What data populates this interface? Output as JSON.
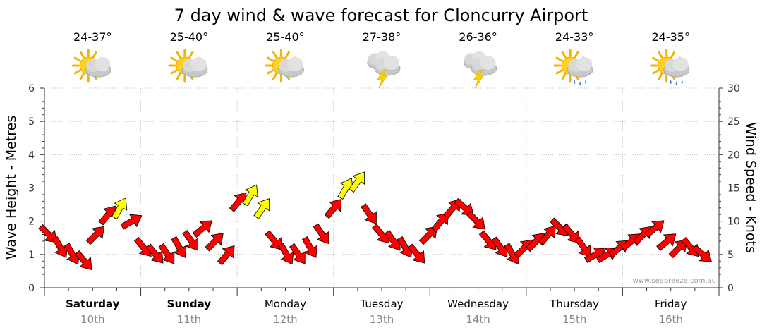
{
  "title": "7 day wind & wave forecast for Cloncurry Airport",
  "credit": "www.seabreeze.com.au",
  "chart_data": {
    "type": "line",
    "title": "7 day wind & wave forecast for Cloncurry Airport",
    "ylabel_left": "Wave Height - Metres",
    "ylabel_right": "Wind Speed - Knots",
    "ylim_left": [
      0,
      6
    ],
    "ylim_right": [
      0,
      30
    ],
    "yticks_left": [
      "0",
      "1",
      "2",
      "3",
      "4",
      "5",
      "6"
    ],
    "yticks_right": [
      "0",
      "5",
      "10",
      "15",
      "20",
      "25",
      "30"
    ],
    "grid": true,
    "days": [
      {
        "day": "Saturday",
        "date": "10th",
        "temp": "24-37°",
        "icon": "partly-cloudy-icon",
        "bold": true
      },
      {
        "day": "Sunday",
        "date": "11th",
        "temp": "25-40°",
        "icon": "partly-cloudy-icon",
        "bold": true
      },
      {
        "day": "Monday",
        "date": "12th",
        "temp": "25-40°",
        "icon": "partly-cloudy-icon",
        "bold": false
      },
      {
        "day": "Tuesday",
        "date": "13th",
        "temp": "27-38°",
        "icon": "thunderstorm-icon",
        "bold": false
      },
      {
        "day": "Wednesday",
        "date": "14th",
        "temp": "26-36°",
        "icon": "thunderstorm-icon",
        "bold": false
      },
      {
        "day": "Thursday",
        "date": "15th",
        "temp": "24-33°",
        "icon": "sun-showers-icon",
        "bold": false
      },
      {
        "day": "Friday",
        "date": "16th",
        "temp": "24-35°",
        "icon": "sun-showers-icon",
        "bold": false
      }
    ],
    "series": [
      {
        "name": "Wind Speed (knots)",
        "hours_from_start": [
          0,
          3,
          6,
          9,
          12,
          15,
          18,
          21,
          24,
          27,
          30,
          33,
          36,
          39,
          42,
          45,
          48,
          51,
          54,
          57,
          60,
          63,
          66,
          69,
          72,
          75,
          78,
          81,
          84,
          87,
          90,
          93,
          96,
          99,
          102,
          105,
          108,
          111,
          114,
          117,
          120,
          123,
          126,
          129,
          132,
          135,
          138,
          141,
          144,
          147,
          150,
          153,
          156,
          159,
          162,
          165
        ],
        "values": [
          8,
          6,
          5,
          4,
          8,
          11,
          12,
          10,
          6,
          5,
          5,
          6,
          7,
          9,
          7,
          5,
          13,
          14,
          12,
          7,
          5,
          5,
          6,
          8,
          12,
          15,
          16,
          11,
          8,
          7,
          6,
          5,
          8,
          10,
          12,
          12,
          10,
          7,
          6,
          5,
          6,
          7,
          8,
          9,
          8,
          6,
          5,
          5,
          6,
          7,
          8,
          9,
          7,
          6,
          6,
          5
        ],
        "colors": [
          "red",
          "red",
          "red",
          "red",
          "red",
          "red",
          "yellow",
          "red",
          "red",
          "red",
          "red",
          "red",
          "red",
          "red",
          "red",
          "red",
          "red",
          "yellow",
          "yellow",
          "red",
          "red",
          "red",
          "red",
          "red",
          "red",
          "yellow",
          "yellow",
          "red",
          "red",
          "red",
          "red",
          "red",
          "red",
          "red",
          "red",
          "red",
          "red",
          "red",
          "red",
          "red",
          "red",
          "red",
          "red",
          "red",
          "red",
          "red",
          "red",
          "red",
          "red",
          "red",
          "red",
          "red",
          "red",
          "red",
          "red",
          "red"
        ],
        "direction_deg": [
          135,
          150,
          150,
          140,
          45,
          40,
          30,
          60,
          140,
          140,
          145,
          150,
          145,
          50,
          45,
          40,
          40,
          30,
          35,
          140,
          150,
          145,
          150,
          145,
          40,
          30,
          35,
          145,
          140,
          145,
          150,
          140,
          45,
          40,
          40,
          130,
          135,
          140,
          145,
          150,
          45,
          45,
          40,
          135,
          140,
          145,
          60,
          60,
          50,
          50,
          45,
          50,
          50,
          45,
          140,
          130
        ]
      }
    ]
  }
}
